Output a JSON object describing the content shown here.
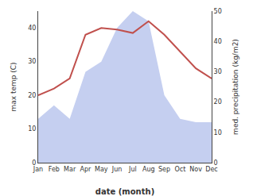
{
  "chart_data": {
    "type": "line",
    "categories": [
      "Jan",
      "Feb",
      "Mar",
      "Apr",
      "May",
      "Jun",
      "Jul",
      "Aug",
      "Sep",
      "Oct",
      "Nov",
      "Dec"
    ],
    "series": [
      {
        "type": "area",
        "color": "#c5cff0",
        "values": [
          13,
          17,
          13,
          27,
          30,
          40,
          45,
          42,
          20,
          13,
          12,
          12
        ]
      },
      {
        "type": "line",
        "color": "#c0504d",
        "values": [
          20,
          22,
          25,
          38,
          40,
          39.5,
          38.5,
          42,
          38,
          33,
          28,
          25
        ]
      }
    ],
    "xlabel": "date (month)",
    "ylabel": "max temp (C)",
    "y2label": "med. precipitation (kg/m2)",
    "ylim": [
      0,
      45
    ],
    "yticks": [
      0,
      10,
      20,
      30,
      40
    ],
    "y2lim": [
      0,
      50
    ],
    "y2ticks": [
      0,
      10,
      20,
      30,
      40,
      50
    ],
    "grid": false
  }
}
